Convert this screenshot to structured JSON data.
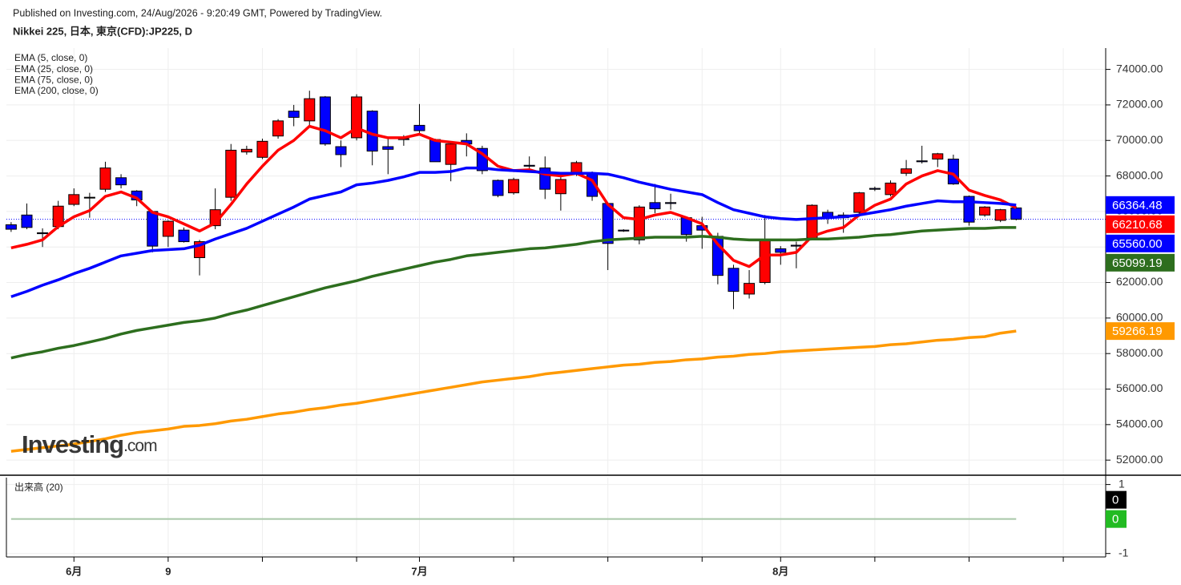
{
  "header": {
    "published": "Published on Investing.com, 24/Aug/2026 - 9:20:49 GMT, Powered by TradingView.",
    "symbol": "Nikkei 225, 日本, 東京(CFD):JP225, D"
  },
  "logo": {
    "name": "Investing",
    "suffix": ".com"
  },
  "chart_data": {
    "type": "candlestick",
    "categories": [
      null,
      null,
      null,
      null,
      "6月",
      null,
      null,
      null,
      null,
      null,
      "9",
      null,
      null,
      null,
      null,
      null,
      null,
      null,
      null,
      null,
      null,
      null,
      null,
      null,
      null,
      null,
      "7月",
      null,
      null,
      null,
      null,
      null,
      null,
      null,
      null,
      null,
      null,
      null,
      null,
      null,
      null,
      null,
      null,
      null,
      null,
      null,
      null,
      null,
      null,
      "8月",
      null,
      null,
      null,
      null,
      null,
      null,
      null,
      null,
      null,
      null,
      null,
      null,
      null,
      null,
      null
    ],
    "open": [
      65250,
      65800,
      64800,
      65150,
      66400,
      66800,
      67250,
      67900,
      67150,
      66000,
      64600,
      64950,
      63400,
      65200,
      66800,
      69350,
      69050,
      70250,
      71650,
      71100,
      72450,
      69650,
      70150,
      71650,
      69650,
      70100,
      70850,
      70050,
      68650,
      70000,
      69550,
      67750,
      67050,
      68600,
      68450,
      67000,
      68100,
      68100,
      66450,
      64950,
      64400,
      66500,
      66500,
      65650,
      65200,
      64600,
      62800,
      61350,
      62000,
      63900,
      64100,
      64500,
      65950,
      65800,
      65950,
      67300,
      66950,
      68150,
      68850,
      68950,
      68950,
      66850,
      65800,
      65500,
      66200
    ],
    "high": [
      65400,
      66450,
      65050,
      66600,
      67300,
      67050,
      68800,
      68100,
      67200,
      66050,
      65500,
      65100,
      64400,
      67300,
      69800,
      69700,
      70100,
      71200,
      72000,
      72800,
      72500,
      70000,
      72600,
      71700,
      70200,
      70300,
      72050,
      70100,
      69900,
      70400,
      69700,
      67800,
      67900,
      69100,
      69100,
      67950,
      68850,
      68250,
      66500,
      65000,
      66350,
      67550,
      67000,
      65700,
      65700,
      64800,
      63000,
      62700,
      65800,
      64050,
      64300,
      66400,
      66100,
      65950,
      67100,
      67400,
      67750,
      68900,
      69700,
      69300,
      69200,
      66900,
      66300,
      66150,
      66250
    ],
    "low": [
      64850,
      65000,
      64000,
      65000,
      66300,
      65650,
      67100,
      67300,
      66300,
      63700,
      64000,
      64250,
      62400,
      65000,
      66600,
      69200,
      68950,
      70100,
      70800,
      70800,
      69700,
      68500,
      70000,
      68600,
      68100,
      69700,
      70300,
      68800,
      67700,
      69100,
      68100,
      66800,
      66950,
      68300,
      66700,
      66050,
      68000,
      66600,
      62700,
      64850,
      64150,
      65900,
      66100,
      64300,
      63900,
      61900,
      60500,
      61100,
      61900,
      63000,
      62800,
      64400,
      65300,
      64800,
      65700,
      67150,
      66850,
      68000,
      68700,
      68500,
      67500,
      65200,
      65700,
      65400,
      65500
    ],
    "close": [
      65000,
      65100,
      64750,
      66300,
      66950,
      66780,
      68450,
      67500,
      66650,
      64050,
      65450,
      64300,
      64300,
      66100,
      69450,
      69500,
      69950,
      71100,
      71300,
      72350,
      69800,
      69200,
      72450,
      69400,
      69500,
      70050,
      70550,
      68800,
      69800,
      69800,
      68300,
      66900,
      67800,
      68550,
      67250,
      67800,
      68750,
      66850,
      64200,
      64900,
      66250,
      66150,
      66450,
      64700,
      64950,
      62400,
      61500,
      61950,
      64350,
      63700,
      64050,
      66350,
      65700,
      65650,
      67050,
      67250,
      67600,
      68400,
      68800,
      69250,
      67550,
      65400,
      66250,
      66100,
      65560
    ],
    "last_close_label": "65560.00",
    "up_color": "#ff0000",
    "down_color": "#0000ff",
    "last_color": "#0000ff",
    "series": [
      {
        "name": "EMA (5, close, 0)",
        "color": "#ff0000",
        "values": [
          63950,
          64150,
          64400,
          65150,
          65700,
          66050,
          66850,
          67100,
          66750,
          65950,
          65700,
          65300,
          64900,
          65350,
          66400,
          67550,
          68550,
          69450,
          70000,
          70800,
          70550,
          70150,
          70700,
          70350,
          70150,
          70150,
          70350,
          70000,
          69900,
          69800,
          69250,
          68550,
          68300,
          68350,
          68100,
          68000,
          68150,
          67750,
          66400,
          65650,
          65550,
          65800,
          65950,
          65650,
          65300,
          64150,
          63250,
          62900,
          63550,
          63550,
          63700,
          64600,
          64900,
          65100,
          65800,
          66350,
          66700,
          67550,
          68000,
          68300,
          68100,
          67200,
          66900,
          66650,
          66210.68
        ]
      },
      {
        "name": "EMA (25, close, 0)",
        "color": "#0000ff",
        "values": [
          61200,
          61500,
          61850,
          62150,
          62500,
          62800,
          63150,
          63500,
          63650,
          63800,
          63850,
          63900,
          64100,
          64450,
          64750,
          65050,
          65450,
          65850,
          66250,
          66700,
          66900,
          67100,
          67500,
          67600,
          67750,
          67950,
          68200,
          68200,
          68250,
          68450,
          68450,
          68350,
          68300,
          68250,
          68200,
          68150,
          68150,
          68150,
          68100,
          67900,
          67650,
          67450,
          67250,
          67100,
          66950,
          66500,
          66100,
          65900,
          65700,
          65600,
          65550,
          65600,
          65650,
          65700,
          65800,
          65950,
          66100,
          66300,
          66450,
          66600,
          66550,
          66550,
          66500,
          66450,
          66364.48
        ]
      },
      {
        "name": "EMA (75, close, 0)",
        "color": "#2d6e1e",
        "values": [
          57750,
          57950,
          58100,
          58300,
          58450,
          58650,
          58850,
          59100,
          59300,
          59450,
          59600,
          59750,
          59850,
          60000,
          60250,
          60450,
          60700,
          60950,
          61200,
          61450,
          61700,
          61900,
          62100,
          62350,
          62550,
          62750,
          62950,
          63150,
          63300,
          63500,
          63600,
          63700,
          63800,
          63900,
          63950,
          64050,
          64150,
          64300,
          64400,
          64450,
          64500,
          64550,
          64550,
          64550,
          64600,
          64550,
          64450,
          64400,
          64400,
          64400,
          64400,
          64450,
          64450,
          64500,
          64550,
          64650,
          64700,
          64800,
          64900,
          64950,
          65000,
          65050,
          65050,
          65100,
          65099.19
        ]
      },
      {
        "name": "EMA (200, close, 0)",
        "color": "#ff9900",
        "values": [
          52500,
          52600,
          52700,
          52800,
          52900,
          53050,
          53200,
          53400,
          53550,
          53650,
          53750,
          53900,
          53950,
          54050,
          54200,
          54300,
          54450,
          54600,
          54700,
          54850,
          54950,
          55100,
          55200,
          55350,
          55500,
          55650,
          55800,
          55950,
          56100,
          56250,
          56400,
          56500,
          56600,
          56700,
          56850,
          56950,
          57050,
          57150,
          57250,
          57350,
          57400,
          57500,
          57550,
          57650,
          57700,
          57800,
          57850,
          57950,
          58000,
          58100,
          58150,
          58200,
          58250,
          58300,
          58350,
          58400,
          58500,
          58550,
          58650,
          58750,
          58800,
          58900,
          58950,
          59150,
          59266.19
        ]
      }
    ],
    "xlim": [
      -0.3,
      69.7
    ],
    "xgrid": [
      4,
      10,
      16,
      22,
      26,
      32,
      38,
      44,
      49,
      55,
      61,
      67
    ],
    "ylim": [
      51150,
      75200
    ],
    "yticks": [
      {
        "value": 52000,
        "label": "52000.00"
      },
      {
        "value": 54000,
        "label": "54000.00"
      },
      {
        "value": 56000,
        "label": "56000.00"
      },
      {
        "value": 58000,
        "label": "58000.00"
      },
      {
        "value": 60000,
        "label": "60000.00"
      },
      {
        "value": 62000,
        "label": "62000.00"
      },
      {
        "value": 64000,
        "label": "64000.00"
      },
      {
        "value": 66000,
        "label": "66000.00"
      },
      {
        "value": 68000,
        "label": "68000.00"
      },
      {
        "value": 70000,
        "label": "70000.00"
      },
      {
        "value": 72000,
        "label": "72000.00"
      },
      {
        "value": 74000,
        "label": "74000.00"
      }
    ],
    "grid": true,
    "volume": {
      "title": "出来高 (20)",
      "color": "#22bb22",
      "ma_color": "#000000",
      "line_color": "#a8c8a8",
      "values": [
        0,
        0,
        0,
        0,
        0,
        0,
        0,
        0,
        0,
        0,
        0,
        0,
        0,
        0,
        0,
        0,
        0,
        0,
        0,
        0,
        0,
        0,
        0,
        0,
        0,
        0,
        0,
        0,
        0,
        0,
        0,
        0,
        0,
        0,
        0,
        0,
        0,
        0,
        0,
        0,
        0,
        0,
        0,
        0,
        0,
        0,
        0,
        0,
        0,
        0,
        0,
        0,
        0,
        0,
        0,
        0,
        0,
        0,
        0,
        0,
        0,
        0,
        0,
        0,
        0
      ],
      "ma": [
        0,
        0,
        0,
        0,
        0,
        0,
        0,
        0,
        0,
        0,
        0,
        0,
        0,
        0,
        0,
        0,
        0,
        0,
        0,
        0,
        0,
        0,
        0,
        0,
        0,
        0,
        0,
        0,
        0,
        0,
        0,
        0,
        0,
        0,
        0,
        0,
        0,
        0,
        0,
        0,
        0,
        0,
        0,
        0,
        0,
        0,
        0,
        0,
        0,
        0,
        0,
        0,
        0,
        0,
        0,
        0,
        0,
        0,
        0,
        0,
        0,
        0,
        0,
        0,
        0
      ],
      "ylim": [
        -1.1,
        1.2
      ],
      "yticks": [
        1,
        -1
      ]
    }
  }
}
